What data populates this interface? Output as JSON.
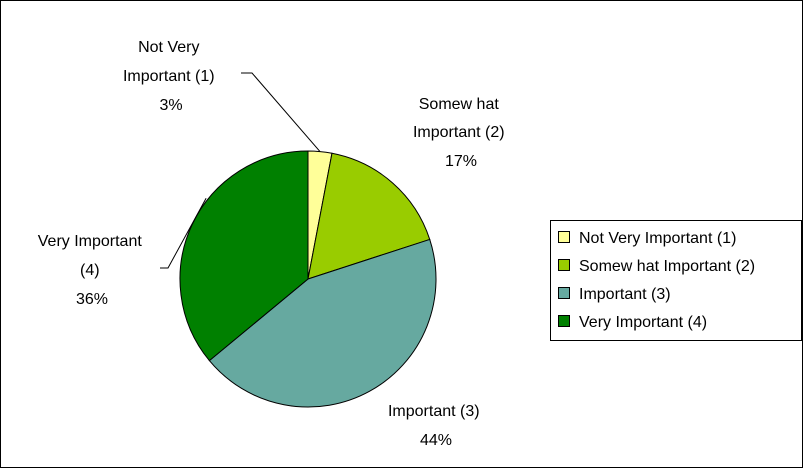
{
  "chart_data": {
    "type": "pie",
    "title": "",
    "categories": [
      "Not Very Important (1)",
      "Somew hat Important (2)",
      "Important (3)",
      "Very Important (4)"
    ],
    "values": [
      3,
      17,
      44,
      36
    ],
    "value_unit": "%",
    "colors": [
      "#FFFF99",
      "#99CC00",
      "#66A9A0",
      "#008000"
    ],
    "slices": [
      {
        "label_lines": [
          "Not Very",
          "Important (1)"
        ],
        "percent_text": "3%"
      },
      {
        "label_lines": [
          "Somew hat",
          "Important (2)"
        ],
        "percent_text": "17%"
      },
      {
        "label_lines": [
          "Important (3)"
        ],
        "percent_text": "44%"
      },
      {
        "label_lines": [
          "Very Important",
          "(4)"
        ],
        "percent_text": "36%"
      }
    ],
    "legend": {
      "placement": "right",
      "entries": [
        "Not Very Important (1)",
        "Somew hat Important (2)",
        "Important (3)",
        "Very Important (4)"
      ]
    }
  }
}
